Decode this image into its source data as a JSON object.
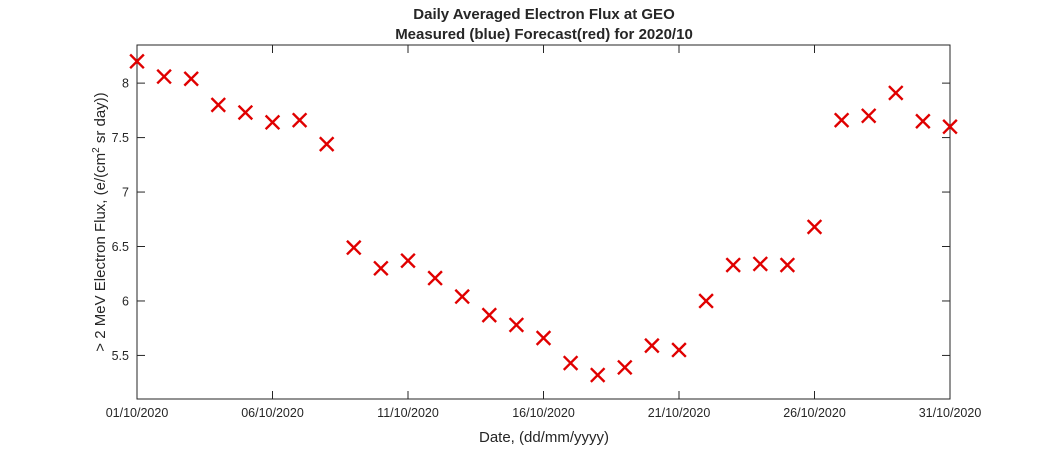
{
  "chart_data": {
    "type": "scatter",
    "title": "Daily Averaged Electron Flux at GEO",
    "subtitle": "Measured (blue) Forecast(red) for 2020/10",
    "xlabel": "Date, (dd/mm/yyyy)",
    "ylabel_main": "> 2 MeV Electron Flux, (e/(cm",
    "ylabel_sup": "2",
    "ylabel_tail": " sr day))",
    "x_tick_labels": [
      "01/10/2020",
      "06/10/2020",
      "11/10/2020",
      "16/10/2020",
      "21/10/2020",
      "26/10/2020",
      "31/10/2020"
    ],
    "y_tick_labels": [
      "5.5",
      "6",
      "6.5",
      "7",
      "7.5",
      "8"
    ],
    "y_ticks": [
      5.5,
      6,
      6.5,
      7,
      7.5,
      8
    ],
    "xlim": [
      "01/10/2020",
      "31/10/2020"
    ],
    "ylim": [
      5.1,
      8.35
    ],
    "grid": false,
    "marker": "x",
    "marker_color": "#e00000",
    "series": [
      {
        "points": [
          {
            "x": "01/10/2020",
            "y": 8.2
          },
          {
            "x": "02/10/2020",
            "y": 8.06
          },
          {
            "x": "03/10/2020",
            "y": 8.04
          },
          {
            "x": "04/10/2020",
            "y": 7.8
          },
          {
            "x": "05/10/2020",
            "y": 7.73
          },
          {
            "x": "06/10/2020",
            "y": 7.64
          },
          {
            "x": "07/10/2020",
            "y": 7.66
          },
          {
            "x": "08/10/2020",
            "y": 7.44
          },
          {
            "x": "09/10/2020",
            "y": 6.49
          },
          {
            "x": "10/10/2020",
            "y": 6.3
          },
          {
            "x": "11/10/2020",
            "y": 6.37
          },
          {
            "x": "12/10/2020",
            "y": 6.21
          },
          {
            "x": "13/10/2020",
            "y": 6.04
          },
          {
            "x": "14/10/2020",
            "y": 5.87
          },
          {
            "x": "15/10/2020",
            "y": 5.78
          },
          {
            "x": "16/10/2020",
            "y": 5.66
          },
          {
            "x": "17/10/2020",
            "y": 5.43
          },
          {
            "x": "18/10/2020",
            "y": 5.32
          },
          {
            "x": "19/10/2020",
            "y": 5.39
          },
          {
            "x": "20/10/2020",
            "y": 5.59
          },
          {
            "x": "21/10/2020",
            "y": 5.55
          },
          {
            "x": "22/10/2020",
            "y": 6.0
          },
          {
            "x": "23/10/2020",
            "y": 6.33
          },
          {
            "x": "24/10/2020",
            "y": 6.34
          },
          {
            "x": "25/10/2020",
            "y": 6.33
          },
          {
            "x": "26/10/2020",
            "y": 6.68
          },
          {
            "x": "27/10/2020",
            "y": 7.66
          },
          {
            "x": "28/10/2020",
            "y": 7.7
          },
          {
            "x": "29/10/2020",
            "y": 7.91
          },
          {
            "x": "30/10/2020",
            "y": 7.65
          },
          {
            "x": "31/10/2020",
            "y": 7.6
          }
        ]
      }
    ]
  }
}
